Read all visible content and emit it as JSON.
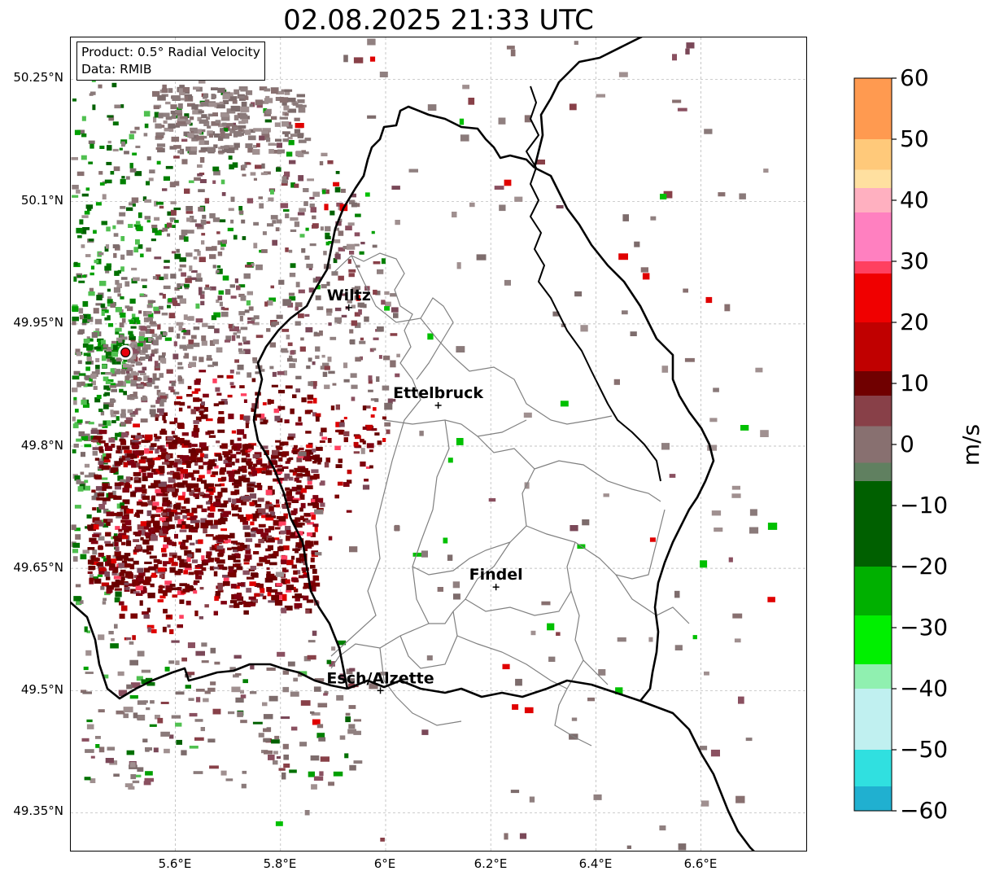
{
  "title": "02.08.2025 21:33 UTC",
  "info_box": {
    "product": "Product: 0.5° Radial Velocity",
    "source": "Data: RMIB"
  },
  "axes": {
    "lat_labels": [
      "50.25°N",
      "50.1°N",
      "49.95°N",
      "49.8°N",
      "49.65°N",
      "49.5°N",
      "49.35°N"
    ],
    "lon_labels": [
      "5.6°E",
      "5.8°E",
      "6°E",
      "6.2°E",
      "6.4°E",
      "6.6°E"
    ],
    "lat_range": [
      49.3,
      50.3
    ],
    "lon_range": [
      5.42,
      6.82
    ],
    "gridlines": true
  },
  "cities": [
    {
      "name": "Wiltz",
      "lon": 5.93,
      "lat": 49.97
    },
    {
      "name": "Ettelbruck",
      "lon": 6.1,
      "lat": 49.85
    },
    {
      "name": "Findel",
      "lon": 6.21,
      "lat": 49.627
    },
    {
      "name": "Esch/Alzette",
      "lon": 5.99,
      "lat": 49.5
    }
  ],
  "radar_site": {
    "lon": 5.505,
    "lat": 49.915,
    "color": "#e8000b"
  },
  "colorbar": {
    "unit": "m/s",
    "vmin": -60,
    "vmax": 60,
    "ticks": [
      "60",
      "50",
      "40",
      "30",
      "20",
      "10",
      "0",
      "−10",
      "−20",
      "−30",
      "−40",
      "−50",
      "−60"
    ],
    "stops": [
      {
        "value": 60,
        "color": "#ff9a50"
      },
      {
        "value": 50,
        "color": "#ffc97a"
      },
      {
        "value": 45,
        "color": "#ffe0a0"
      },
      {
        "value": 42,
        "color": "#ffb0c0"
      },
      {
        "value": 38,
        "color": "#ff80c0"
      },
      {
        "value": 30,
        "color": "#ff4060"
      },
      {
        "value": 28,
        "color": "#f00000"
      },
      {
        "value": 20,
        "color": "#c00000"
      },
      {
        "value": 12,
        "color": "#700000"
      },
      {
        "value": 8,
        "color": "#884048"
      },
      {
        "value": 3,
        "color": "#887070"
      },
      {
        "value": -3,
        "color": "#608060"
      },
      {
        "value": -6,
        "color": "#006000"
      },
      {
        "value": -20,
        "color": "#00b000"
      },
      {
        "value": -28,
        "color": "#00f000"
      },
      {
        "value": -36,
        "color": "#90f0b0"
      },
      {
        "value": -40,
        "color": "#c0f0f0"
      },
      {
        "value": -50,
        "color": "#30e0e0"
      },
      {
        "value": -56,
        "color": "#20b0d0"
      },
      {
        "value": -60,
        "color": "#2080c0"
      }
    ]
  }
}
